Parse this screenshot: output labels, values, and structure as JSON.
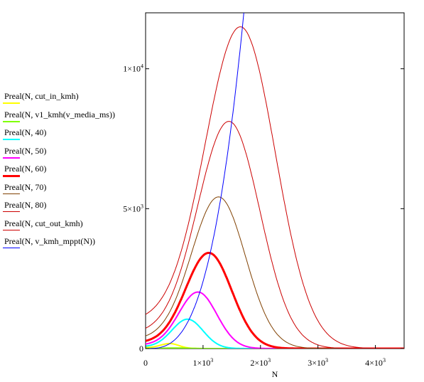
{
  "chart_data": {
    "type": "line",
    "xlabel": "N",
    "xlim": [
      0,
      4500
    ],
    "ylim": [
      0,
      12000
    ],
    "x_ticks": [
      {
        "value": 0,
        "mantissa": "0",
        "exp": ""
      },
      {
        "value": 1000,
        "mantissa": "1×10",
        "exp": "3"
      },
      {
        "value": 2000,
        "mantissa": "2×10",
        "exp": "3"
      },
      {
        "value": 3000,
        "mantissa": "3×10",
        "exp": "3"
      },
      {
        "value": 4000,
        "mantissa": "4×10",
        "exp": "3"
      }
    ],
    "y_ticks": [
      {
        "value": 0,
        "mantissa": "0",
        "exp": ""
      },
      {
        "value": 5000,
        "mantissa": "5×10",
        "exp": "3"
      },
      {
        "value": 10000,
        "mantissa": "1×10",
        "exp": "4"
      }
    ],
    "series": [
      {
        "name": "Preal(N, cut_in_kmh)",
        "color": "#ffff00",
        "width": 2,
        "kind": "bell",
        "peak_x": 420,
        "peak_y": 180,
        "sigma": 160,
        "y0": 30
      },
      {
        "name": "Preal(N, v1_kmh(v_media_ms))",
        "color": "#80ff00",
        "width": 2,
        "kind": "bell",
        "peak_x": 520,
        "peak_y": 20,
        "sigma": 200,
        "y0": 5
      },
      {
        "name": "Preal(N, 40)",
        "color": "#00ffff",
        "width": 2,
        "kind": "bell",
        "peak_x": 730,
        "peak_y": 1050,
        "sigma": 270,
        "y0": 60
      },
      {
        "name": "Preal(N, 50)",
        "color": "#ff00ff",
        "width": 2,
        "kind": "bell",
        "peak_x": 910,
        "peak_y": 2020,
        "sigma": 330,
        "y0": 120
      },
      {
        "name": "Preal(N, 60)",
        "color": "#ff0000",
        "width": 3,
        "kind": "bell",
        "peak_x": 1100,
        "peak_y": 3420,
        "sigma": 400,
        "y0": 200
      },
      {
        "name": "Preal(N, 70)",
        "color": "#804000",
        "width": 1,
        "kind": "bell",
        "peak_x": 1270,
        "peak_y": 5420,
        "sigma": 470,
        "y0": 320
      },
      {
        "name": "Preal(N, 80)",
        "color": "#cc0000",
        "width": 1,
        "kind": "bell",
        "peak_x": 1450,
        "peak_y": 8120,
        "sigma": 540,
        "y0": 520
      },
      {
        "name": "Preal(N, cut_out_kmh)",
        "color": "#cc0000",
        "width": 1,
        "kind": "bell",
        "peak_x": 1650,
        "peak_y": 11500,
        "sigma": 610,
        "y0": 950
      },
      {
        "name": "Preal(N, v_kmh_mppt(N))",
        "color": "#0000ff",
        "width": 1,
        "kind": "cubic",
        "coef": 0.0024,
        "power": 3
      }
    ]
  }
}
